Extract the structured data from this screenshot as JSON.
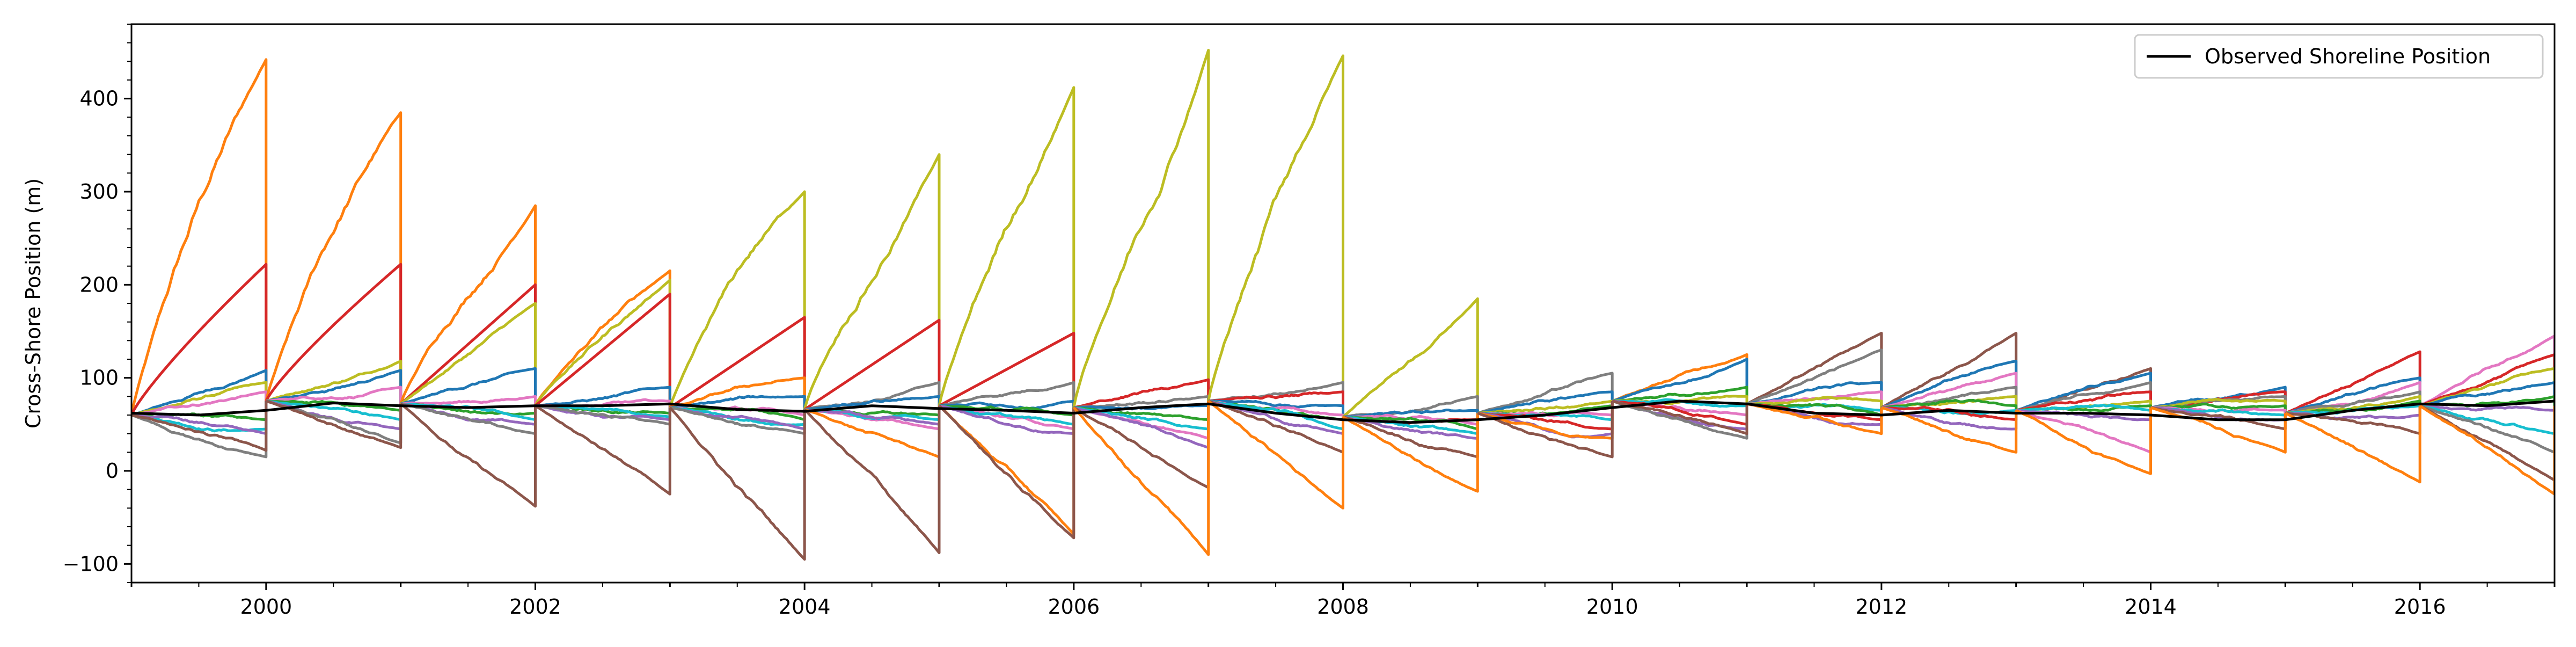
{
  "chart_data": {
    "type": "line",
    "title": "",
    "xlabel": "",
    "ylabel": "Cross-Shore Position (m)",
    "xlim": [
      1999.0,
      2017.0
    ],
    "ylim": [
      -120,
      480
    ],
    "x_ticks": [
      "2000",
      "2002",
      "2004",
      "2006",
      "2008",
      "2010",
      "2012",
      "2014",
      "2016"
    ],
    "y_ticks": [
      "−100",
      "0",
      "100",
      "200",
      "300",
      "400"
    ],
    "grid": false,
    "legend": {
      "placement": "top-right",
      "entries": [
        {
          "label": "Observed Shoreline Position",
          "color": "#000000"
        }
      ]
    },
    "palette": [
      "#1f77b4",
      "#ff7f0e",
      "#2ca02c",
      "#d62728",
      "#9467bd",
      "#8c564b",
      "#e377c2",
      "#7f7f7f",
      "#bcbd22",
      "#17becf"
    ],
    "observed": {
      "name": "Observed Shoreline Position",
      "color": "#000000",
      "points": [
        [
          1999.0,
          62
        ],
        [
          1999.5,
          60
        ],
        [
          2000.0,
          65
        ],
        [
          2000.5,
          73
        ],
        [
          2001.0,
          70
        ],
        [
          2001.5,
          68
        ],
        [
          2002.0,
          70
        ],
        [
          2002.5,
          70
        ],
        [
          2003.0,
          72
        ],
        [
          2003.5,
          66
        ],
        [
          2004.0,
          64
        ],
        [
          2004.5,
          70
        ],
        [
          2005.0,
          67
        ],
        [
          2005.5,
          65
        ],
        [
          2006.0,
          62
        ],
        [
          2006.5,
          68
        ],
        [
          2007.0,
          72
        ],
        [
          2007.5,
          62
        ],
        [
          2008.0,
          55
        ],
        [
          2008.5,
          52
        ],
        [
          2009.0,
          55
        ],
        [
          2009.5,
          60
        ],
        [
          2010.0,
          68
        ],
        [
          2010.5,
          75
        ],
        [
          2011.0,
          72
        ],
        [
          2011.5,
          62
        ],
        [
          2012.0,
          60
        ],
        [
          2012.5,
          65
        ],
        [
          2013.0,
          62
        ],
        [
          2013.5,
          62
        ],
        [
          2014.0,
          60
        ],
        [
          2014.5,
          55
        ],
        [
          2015.0,
          55
        ],
        [
          2015.5,
          65
        ],
        [
          2016.0,
          72
        ],
        [
          2016.5,
          70
        ],
        [
          2017.0,
          75
        ]
      ]
    },
    "segments": [
      {
        "start": 1999.0,
        "end": 2000.0,
        "start_y": 60,
        "series": [
          {
            "color": "#ff7f0e",
            "end": 442
          },
          {
            "color": "#d62728",
            "end": 222
          },
          {
            "color": "#1f77b4",
            "end": 108
          },
          {
            "color": "#bcbd22",
            "end": 95
          },
          {
            "color": "#e377c2",
            "end": 85
          },
          {
            "color": "#2ca02c",
            "end": 55
          },
          {
            "color": "#17becf",
            "end": 45
          },
          {
            "color": "#9467bd",
            "end": 40
          },
          {
            "color": "#7f7f7f",
            "end": 15
          },
          {
            "color": "#8c564b",
            "end": 22
          }
        ]
      },
      {
        "start": 2000.0,
        "end": 2001.0,
        "start_y": 75,
        "series": [
          {
            "color": "#ff7f0e",
            "end": 385
          },
          {
            "color": "#d62728",
            "end": 222
          },
          {
            "color": "#bcbd22",
            "end": 118
          },
          {
            "color": "#1f77b4",
            "end": 108
          },
          {
            "color": "#e377c2",
            "end": 90
          },
          {
            "color": "#2ca02c",
            "end": 65
          },
          {
            "color": "#17becf",
            "end": 55
          },
          {
            "color": "#9467bd",
            "end": 45
          },
          {
            "color": "#7f7f7f",
            "end": 30
          },
          {
            "color": "#8c564b",
            "end": 25
          }
        ]
      },
      {
        "start": 2001.0,
        "end": 2002.0,
        "start_y": 72,
        "series": [
          {
            "color": "#ff7f0e",
            "end": 285
          },
          {
            "color": "#d62728",
            "end": 200
          },
          {
            "color": "#bcbd22",
            "end": 180
          },
          {
            "color": "#1f77b4",
            "end": 110
          },
          {
            "color": "#e377c2",
            "end": 80
          },
          {
            "color": "#2ca02c",
            "end": 62
          },
          {
            "color": "#17becf",
            "end": 55
          },
          {
            "color": "#9467bd",
            "end": 50
          },
          {
            "color": "#7f7f7f",
            "end": 40
          },
          {
            "color": "#8c564b",
            "end": -38
          }
        ]
      },
      {
        "start": 2002.0,
        "end": 2003.0,
        "start_y": 70,
        "series": [
          {
            "color": "#ff7f0e",
            "end": 215
          },
          {
            "color": "#bcbd22",
            "end": 205
          },
          {
            "color": "#d62728",
            "end": 190
          },
          {
            "color": "#1f77b4",
            "end": 90
          },
          {
            "color": "#e377c2",
            "end": 75
          },
          {
            "color": "#2ca02c",
            "end": 62
          },
          {
            "color": "#17becf",
            "end": 58
          },
          {
            "color": "#9467bd",
            "end": 55
          },
          {
            "color": "#7f7f7f",
            "end": 50
          },
          {
            "color": "#8c564b",
            "end": -25
          }
        ]
      },
      {
        "start": 2003.0,
        "end": 2004.0,
        "start_y": 68,
        "series": [
          {
            "color": "#bcbd22",
            "end": 300
          },
          {
            "color": "#d62728",
            "end": 165
          },
          {
            "color": "#ff7f0e",
            "end": 100
          },
          {
            "color": "#1f77b4",
            "end": 80
          },
          {
            "color": "#e377c2",
            "end": 60
          },
          {
            "color": "#2ca02c",
            "end": 55
          },
          {
            "color": "#17becf",
            "end": 50
          },
          {
            "color": "#9467bd",
            "end": 45
          },
          {
            "color": "#7f7f7f",
            "end": 40
          },
          {
            "color": "#8c564b",
            "end": -95
          }
        ]
      },
      {
        "start": 2004.0,
        "end": 2005.0,
        "start_y": 66,
        "series": [
          {
            "color": "#bcbd22",
            "end": 340
          },
          {
            "color": "#d62728",
            "end": 162
          },
          {
            "color": "#7f7f7f",
            "end": 95
          },
          {
            "color": "#1f77b4",
            "end": 80
          },
          {
            "color": "#e377c2",
            "end": 45
          },
          {
            "color": "#2ca02c",
            "end": 60
          },
          {
            "color": "#17becf",
            "end": 55
          },
          {
            "color": "#9467bd",
            "end": 50
          },
          {
            "color": "#ff7f0e",
            "end": 15
          },
          {
            "color": "#8c564b",
            "end": -88
          }
        ]
      },
      {
        "start": 2005.0,
        "end": 2006.0,
        "start_y": 70,
        "series": [
          {
            "color": "#bcbd22",
            "end": 412
          },
          {
            "color": "#d62728",
            "end": 148
          },
          {
            "color": "#7f7f7f",
            "end": 95
          },
          {
            "color": "#1f77b4",
            "end": 75
          },
          {
            "color": "#e377c2",
            "end": 45
          },
          {
            "color": "#2ca02c",
            "end": 60
          },
          {
            "color": "#17becf",
            "end": 50
          },
          {
            "color": "#9467bd",
            "end": 40
          },
          {
            "color": "#ff7f0e",
            "end": -68
          },
          {
            "color": "#8c564b",
            "end": -72
          }
        ]
      },
      {
        "start": 2006.0,
        "end": 2007.0,
        "start_y": 68,
        "series": [
          {
            "color": "#bcbd22",
            "end": 452
          },
          {
            "color": "#d62728",
            "end": 98
          },
          {
            "color": "#7f7f7f",
            "end": 80
          },
          {
            "color": "#1f77b4",
            "end": 70
          },
          {
            "color": "#e377c2",
            "end": 35
          },
          {
            "color": "#2ca02c",
            "end": 55
          },
          {
            "color": "#17becf",
            "end": 45
          },
          {
            "color": "#9467bd",
            "end": 25
          },
          {
            "color": "#8c564b",
            "end": -18
          },
          {
            "color": "#ff7f0e",
            "end": -90
          }
        ]
      },
      {
        "start": 2007.0,
        "end": 2008.0,
        "start_y": 75,
        "series": [
          {
            "color": "#bcbd22",
            "end": 446
          },
          {
            "color": "#7f7f7f",
            "end": 95
          },
          {
            "color": "#d62728",
            "end": 85
          },
          {
            "color": "#1f77b4",
            "end": 70
          },
          {
            "color": "#e377c2",
            "end": 60
          },
          {
            "color": "#2ca02c",
            "end": 55
          },
          {
            "color": "#17becf",
            "end": 45
          },
          {
            "color": "#9467bd",
            "end": 40
          },
          {
            "color": "#8c564b",
            "end": 20
          },
          {
            "color": "#ff7f0e",
            "end": -40
          }
        ]
      },
      {
        "start": 2008.0,
        "end": 2009.0,
        "start_y": 58,
        "series": [
          {
            "color": "#bcbd22",
            "end": 185
          },
          {
            "color": "#7f7f7f",
            "end": 80
          },
          {
            "color": "#1f77b4",
            "end": 65
          },
          {
            "color": "#d62728",
            "end": 55
          },
          {
            "color": "#e377c2",
            "end": 50
          },
          {
            "color": "#2ca02c",
            "end": 45
          },
          {
            "color": "#17becf",
            "end": 40
          },
          {
            "color": "#9467bd",
            "end": 35
          },
          {
            "color": "#8c564b",
            "end": 15
          },
          {
            "color": "#ff7f0e",
            "end": -22
          }
        ]
      },
      {
        "start": 2009.0,
        "end": 2010.0,
        "start_y": 62,
        "series": [
          {
            "color": "#7f7f7f",
            "end": 105
          },
          {
            "color": "#1f77b4",
            "end": 85
          },
          {
            "color": "#bcbd22",
            "end": 75
          },
          {
            "color": "#2ca02c",
            "end": 70
          },
          {
            "color": "#e377c2",
            "end": 60
          },
          {
            "color": "#17becf",
            "end": 55
          },
          {
            "color": "#d62728",
            "end": 45
          },
          {
            "color": "#9467bd",
            "end": 40
          },
          {
            "color": "#ff7f0e",
            "end": 35
          },
          {
            "color": "#8c564b",
            "end": 15
          }
        ]
      },
      {
        "start": 2010.0,
        "end": 2011.0,
        "start_y": 75,
        "series": [
          {
            "color": "#ff7f0e",
            "end": 125
          },
          {
            "color": "#1f77b4",
            "end": 120
          },
          {
            "color": "#2ca02c",
            "end": 90
          },
          {
            "color": "#bcbd22",
            "end": 80
          },
          {
            "color": "#17becf",
            "end": 70
          },
          {
            "color": "#e377c2",
            "end": 60
          },
          {
            "color": "#d62728",
            "end": 50
          },
          {
            "color": "#9467bd",
            "end": 45
          },
          {
            "color": "#7f7f7f",
            "end": 35
          },
          {
            "color": "#8c564b",
            "end": 40
          }
        ]
      },
      {
        "start": 2011.0,
        "end": 2012.0,
        "start_y": 72,
        "series": [
          {
            "color": "#8c564b",
            "end": 148
          },
          {
            "color": "#7f7f7f",
            "end": 130
          },
          {
            "color": "#1f77b4",
            "end": 95
          },
          {
            "color": "#e377c2",
            "end": 85
          },
          {
            "color": "#bcbd22",
            "end": 75
          },
          {
            "color": "#17becf",
            "end": 65
          },
          {
            "color": "#2ca02c",
            "end": 60
          },
          {
            "color": "#d62728",
            "end": 55
          },
          {
            "color": "#9467bd",
            "end": 50
          },
          {
            "color": "#ff7f0e",
            "end": 40
          }
        ]
      },
      {
        "start": 2012.0,
        "end": 2013.0,
        "start_y": 68,
        "series": [
          {
            "color": "#8c564b",
            "end": 148
          },
          {
            "color": "#1f77b4",
            "end": 118
          },
          {
            "color": "#e377c2",
            "end": 105
          },
          {
            "color": "#7f7f7f",
            "end": 90
          },
          {
            "color": "#bcbd22",
            "end": 80
          },
          {
            "color": "#2ca02c",
            "end": 70
          },
          {
            "color": "#17becf",
            "end": 65
          },
          {
            "color": "#d62728",
            "end": 55
          },
          {
            "color": "#9467bd",
            "end": 45
          },
          {
            "color": "#ff7f0e",
            "end": 20
          }
        ]
      },
      {
        "start": 2013.0,
        "end": 2014.0,
        "start_y": 65,
        "series": [
          {
            "color": "#8c564b",
            "end": 110
          },
          {
            "color": "#1f77b4",
            "end": 105
          },
          {
            "color": "#7f7f7f",
            "end": 95
          },
          {
            "color": "#d62728",
            "end": 85
          },
          {
            "color": "#bcbd22",
            "end": 75
          },
          {
            "color": "#2ca02c",
            "end": 70
          },
          {
            "color": "#17becf",
            "end": 65
          },
          {
            "color": "#9467bd",
            "end": 55
          },
          {
            "color": "#e377c2",
            "end": 20
          },
          {
            "color": "#ff7f0e",
            "end": -3
          }
        ]
      },
      {
        "start": 2014.0,
        "end": 2015.0,
        "start_y": 68,
        "series": [
          {
            "color": "#1f77b4",
            "end": 90
          },
          {
            "color": "#d62728",
            "end": 85
          },
          {
            "color": "#7f7f7f",
            "end": 80
          },
          {
            "color": "#bcbd22",
            "end": 75
          },
          {
            "color": "#2ca02c",
            "end": 70
          },
          {
            "color": "#e377c2",
            "end": 65
          },
          {
            "color": "#17becf",
            "end": 60
          },
          {
            "color": "#9467bd",
            "end": 55
          },
          {
            "color": "#8c564b",
            "end": 45
          },
          {
            "color": "#ff7f0e",
            "end": 20
          }
        ]
      },
      {
        "start": 2015.0,
        "end": 2016.0,
        "start_y": 62,
        "series": [
          {
            "color": "#d62728",
            "end": 128
          },
          {
            "color": "#1f77b4",
            "end": 100
          },
          {
            "color": "#e377c2",
            "end": 95
          },
          {
            "color": "#7f7f7f",
            "end": 85
          },
          {
            "color": "#bcbd22",
            "end": 80
          },
          {
            "color": "#2ca02c",
            "end": 75
          },
          {
            "color": "#17becf",
            "end": 70
          },
          {
            "color": "#9467bd",
            "end": 60
          },
          {
            "color": "#8c564b",
            "end": 40
          },
          {
            "color": "#ff7f0e",
            "end": -12
          }
        ]
      },
      {
        "start": 2016.0,
        "end": 2017.0,
        "start_y": 70,
        "series": [
          {
            "color": "#e377c2",
            "end": 145
          },
          {
            "color": "#d62728",
            "end": 125
          },
          {
            "color": "#bcbd22",
            "end": 110
          },
          {
            "color": "#1f77b4",
            "end": 95
          },
          {
            "color": "#2ca02c",
            "end": 80
          },
          {
            "color": "#9467bd",
            "end": 65
          },
          {
            "color": "#17becf",
            "end": 40
          },
          {
            "color": "#7f7f7f",
            "end": 20
          },
          {
            "color": "#8c564b",
            "end": -10
          },
          {
            "color": "#ff7f0e",
            "end": -25
          }
        ]
      }
    ]
  }
}
